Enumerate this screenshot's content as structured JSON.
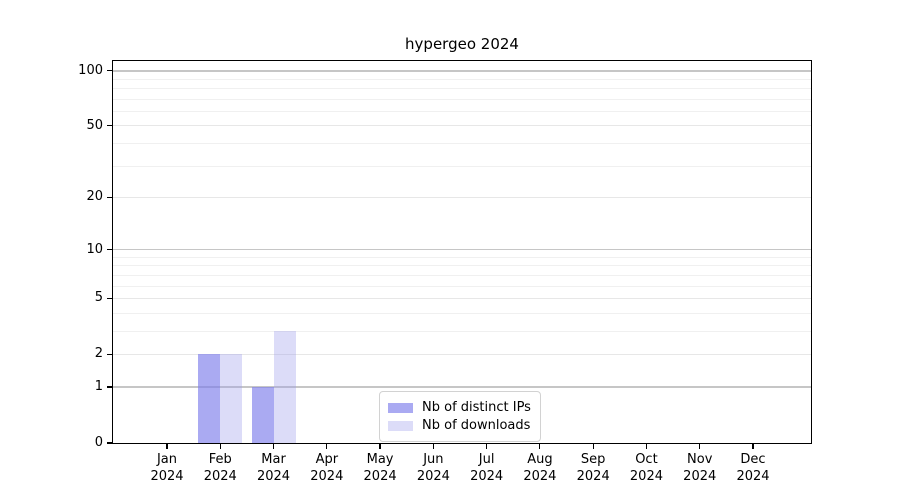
{
  "chart_data": {
    "type": "bar",
    "title": "hypergeo 2024",
    "months": [
      "Jan",
      "Feb",
      "Mar",
      "Apr",
      "May",
      "Jun",
      "Jul",
      "Aug",
      "Sep",
      "Oct",
      "Nov",
      "Dec"
    ],
    "year": "2024",
    "series": [
      {
        "name": "Nb of distinct IPs",
        "display_color": "#aaaaf2",
        "fill": "rgba(124,124,235,0.65)",
        "values": [
          0,
          2,
          1,
          0,
          0,
          0,
          0,
          0,
          0,
          0,
          0,
          0
        ]
      },
      {
        "name": "Nb of downloads",
        "display_color": "#dcdcf8",
        "fill": "rgba(155,155,235,0.35)",
        "values": [
          0,
          2,
          3,
          0,
          0,
          0,
          0,
          0,
          0,
          0,
          0,
          0
        ]
      }
    ],
    "yticks": [
      0,
      1,
      2,
      5,
      10,
      20,
      50,
      100
    ],
    "scale": "log1p",
    "ylim": [
      0,
      113
    ],
    "grid": {
      "decade": [
        1,
        10,
        100
      ],
      "labeled": [
        2,
        5,
        20,
        50
      ],
      "minor": [
        3,
        4,
        6,
        7,
        8,
        9,
        30,
        40,
        60,
        70,
        80,
        90
      ]
    },
    "colors": {
      "axis": "#000000",
      "grid_decade": "#c6c6c6",
      "grid_labeled": "#e7e7e7",
      "grid_minor": "#f0f0f0"
    },
    "legend_position": "lower center"
  }
}
